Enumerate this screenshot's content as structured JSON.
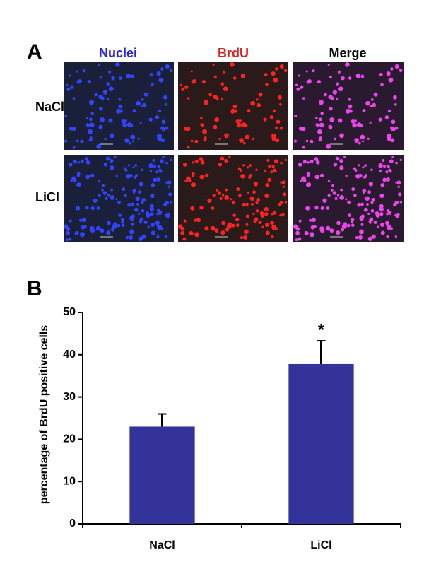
{
  "panel_labels": [
    "A",
    "B"
  ],
  "microscopy": {
    "columns": [
      "Nuclei",
      "BrdU",
      "Merge"
    ],
    "rows": [
      "NaCl",
      "LiCl"
    ]
  },
  "chart_data": {
    "type": "bar",
    "y_label": "percentage of  BrdU positive cells",
    "categories": [
      "NaCl",
      "LiCl"
    ],
    "values": [
      23,
      37.8
    ],
    "errors": [
      3,
      5.5
    ],
    "color": "#333399",
    "annotation": "*",
    "ylim": [
      0,
      50
    ],
    "yticks": [
      0,
      10,
      20,
      30,
      40,
      50
    ]
  }
}
